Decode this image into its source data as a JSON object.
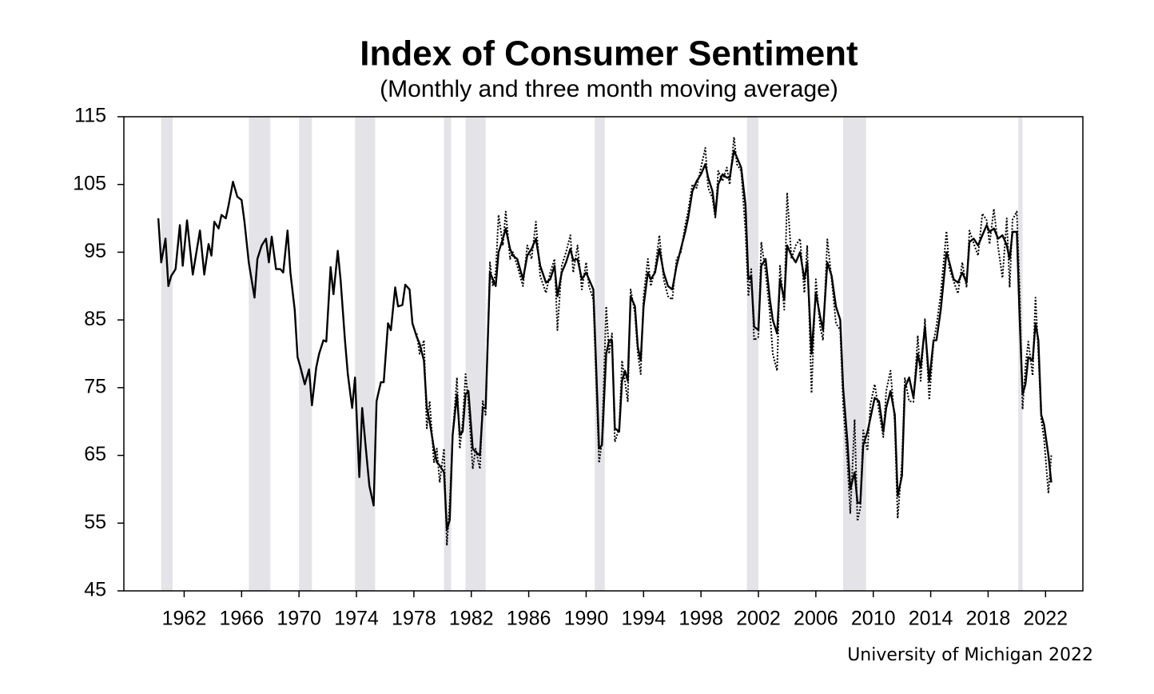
{
  "chart_data": {
    "type": "line",
    "title": "Index of Consumer Sentiment",
    "subtitle": "(Monthly and three month moving average)",
    "source": "University of Michigan 2022",
    "xlim": [
      1957.8,
      2024.6
    ],
    "xticks": [
      1962,
      1966,
      1970,
      1974,
      1978,
      1982,
      1986,
      1990,
      1994,
      1998,
      2002,
      2006,
      2010,
      2014,
      2018,
      2022
    ],
    "ylim": [
      45,
      115
    ],
    "yticks": [
      45,
      55,
      65,
      75,
      85,
      95,
      105,
      115
    ],
    "grid": false,
    "shaded_color": "#e4e4e8",
    "shaded": [
      [
        1960.4,
        1961.2
      ],
      [
        1966.5,
        1968.0
      ],
      [
        1970.0,
        1970.9
      ],
      [
        1973.9,
        1975.3
      ],
      [
        1980.1,
        1980.6
      ],
      [
        1981.6,
        1983.0
      ],
      [
        1990.6,
        1991.3
      ],
      [
        2001.2,
        2002.0
      ],
      [
        2007.9,
        2009.5
      ],
      [
        2020.1,
        2020.4
      ]
    ],
    "series": [
      {
        "color": "#000000",
        "style": "solid",
        "x": [
          1960.2,
          1960.4,
          1960.7,
          1960.9,
          1961.1,
          1961.4,
          1961.7,
          1961.9,
          1962.2,
          1962.6,
          1963.1,
          1963.4,
          1963.7,
          1963.9,
          1964.1,
          1964.4,
          1964.6,
          1964.9,
          1965.1,
          1965.4,
          1965.7,
          1966.0,
          1966.2,
          1966.5,
          1966.9,
          1967.1,
          1967.4,
          1967.7,
          1967.9,
          1968.1,
          1968.4,
          1968.7,
          1968.9,
          1969.2,
          1969.4,
          1969.7,
          1969.9,
          1970.1,
          1970.4,
          1970.7,
          1970.9,
          1971.2,
          1971.4,
          1971.7,
          1971.9,
          1972.2,
          1972.4,
          1972.7,
          1972.9,
          1973.2,
          1973.4,
          1973.7,
          1973.9,
          1974.2,
          1974.4,
          1974.7,
          1974.9,
          1975.2,
          1975.4,
          1975.7,
          1975.9,
          1976.2,
          1976.4,
          1976.7,
          1976.9,
          1977.2,
          1977.4,
          1977.7,
          1977.9,
          1978.2,
          1978.4,
          1978.7,
          1978.9,
          1979.1,
          1979.4,
          1979.6,
          1979.8,
          1980.1,
          1980.3,
          1980.5,
          1980.7,
          1981.0,
          1981.2,
          1981.4,
          1981.6,
          1981.8,
          1982.1,
          1982.3,
          1982.6,
          1982.8,
          1983.0,
          1983.3,
          1983.5,
          1983.7,
          1983.9,
          1984.2,
          1984.4,
          1984.7,
          1984.9,
          1985.2,
          1985.6,
          1985.9,
          1986.2,
          1986.5,
          1986.8,
          1987.2,
          1987.5,
          1987.8,
          1988.0,
          1988.3,
          1988.6,
          1988.9,
          1989.1,
          1989.4,
          1989.7,
          1990.0,
          1990.2,
          1990.5,
          1990.7,
          1990.9,
          1991.1,
          1991.4,
          1991.6,
          1991.8,
          1992.0,
          1992.3,
          1992.5,
          1992.7,
          1992.9,
          1993.1,
          1993.4,
          1993.6,
          1993.8,
          1994.0,
          1994.3,
          1994.5,
          1994.8,
          1995.1,
          1995.4,
          1995.7,
          1996.0,
          1996.3,
          1996.6,
          1996.9,
          1997.1,
          1997.4,
          1997.7,
          1998.0,
          1998.3,
          1998.5,
          1998.8,
          1999.0,
          1999.2,
          1999.5,
          1999.8,
          2000.0,
          2000.3,
          2000.5,
          2000.8,
          2001.1,
          2001.3,
          2001.5,
          2001.7,
          2002.0,
          2002.2,
          2002.5,
          2002.8,
          2003.0,
          2003.3,
          2003.5,
          2003.8,
          2004.0,
          2004.3,
          2004.6,
          2004.9,
          2005.2,
          2005.4,
          2005.7,
          2006.0,
          2006.3,
          2006.5,
          2006.8,
          2007.1,
          2007.4,
          2007.7,
          2007.9,
          2008.2,
          2008.4,
          2008.7,
          2008.9,
          2009.1,
          2009.3,
          2009.6,
          2009.8,
          2010.1,
          2010.4,
          2010.7,
          2010.9,
          2011.2,
          2011.5,
          2011.7,
          2012.0,
          2012.2,
          2012.5,
          2012.8,
          2013.1,
          2013.3,
          2013.6,
          2013.9,
          2014.2,
          2014.4,
          2014.7,
          2015.1,
          2015.3,
          2015.6,
          2015.9,
          2016.2,
          2016.5,
          2016.7,
          2017.0,
          2017.3,
          2017.6,
          2017.9,
          2018.1,
          2018.4,
          2018.7,
          2019.0,
          2019.3,
          2019.5,
          2019.7,
          2020.0,
          2020.2,
          2020.4,
          2020.6,
          2020.8,
          2021.1,
          2021.3,
          2021.5,
          2021.7,
          2021.9,
          2022.2,
          2022.4
        ],
        "values": [
          100,
          93.5,
          97,
          90,
          91.5,
          92.5,
          99,
          93,
          99.7,
          91.7,
          98.2,
          91.7,
          96.2,
          94.5,
          99.5,
          98.5,
          100.5,
          100,
          102,
          105.4,
          103.2,
          102.7,
          99.5,
          93.5,
          88.3,
          94,
          96,
          97,
          93.5,
          97.3,
          92.5,
          92.5,
          92,
          98.2,
          92,
          86.5,
          79.5,
          78,
          75.5,
          77.7,
          72.4,
          78,
          80,
          82,
          81.8,
          92.8,
          88.8,
          95.2,
          90.8,
          82,
          77,
          72,
          76.5,
          61.8,
          72,
          65,
          60.5,
          57.6,
          73,
          75.8,
          75.8,
          84.5,
          83.5,
          89.8,
          87,
          87.2,
          90.2,
          89.5,
          84.5,
          82.5,
          81.5,
          79,
          72,
          70,
          66,
          64,
          63.5,
          62.5,
          54,
          55.5,
          68,
          74,
          68,
          68.5,
          74,
          74.5,
          66,
          65.5,
          65,
          72,
          72,
          92,
          91,
          90,
          95,
          97,
          98.5,
          95.5,
          94.5,
          94,
          91,
          94.5,
          95.5,
          97,
          93,
          90.5,
          91,
          93,
          88.5,
          92,
          93.5,
          95.5,
          93.8,
          94,
          91,
          92,
          91,
          89.5,
          78,
          66,
          66.5,
          80,
          82,
          82,
          69,
          68.5,
          76,
          77.5,
          76,
          88.5,
          87,
          81,
          79,
          87,
          92,
          91,
          92,
          95.5,
          92,
          90,
          89.5,
          93,
          95.5,
          98,
          100,
          104,
          105.5,
          106.5,
          108,
          106,
          104,
          100.5,
          105,
          106.5,
          106,
          106,
          110,
          109,
          107.5,
          102,
          91,
          91.5,
          84,
          83.5,
          93,
          94,
          88,
          85,
          83,
          91,
          88,
          96,
          94.5,
          93.5,
          95,
          91,
          93.5,
          80,
          89,
          85.5,
          83.5,
          93.5,
          91.5,
          87,
          85,
          75,
          67,
          60,
          62.5,
          58,
          58,
          66.5,
          68.5,
          70.5,
          73.5,
          73,
          68.5,
          72,
          74.5,
          71,
          59,
          62,
          75,
          76.5,
          73.5,
          80,
          78,
          84,
          76,
          82,
          82,
          86.5,
          95,
          93.5,
          91,
          90.5,
          92,
          90.5,
          96.5,
          97,
          96,
          97.5,
          99,
          98,
          98.5,
          97,
          97.5,
          96,
          94,
          98,
          98,
          85,
          74,
          75.5,
          79.5,
          79,
          84.5,
          82,
          71,
          69.5,
          65,
          61
        ]
      },
      {
        "color": "#000000",
        "style": "dotted",
        "x": [
          1978.2,
          1978.4,
          1978.7,
          1978.9,
          1979.1,
          1979.4,
          1979.6,
          1979.8,
          1980.1,
          1980.3,
          1980.5,
          1980.7,
          1981.0,
          1981.2,
          1981.4,
          1981.6,
          1981.8,
          1982.1,
          1982.3,
          1982.6,
          1982.8,
          1983.0,
          1983.3,
          1983.5,
          1983.7,
          1983.9,
          1984.2,
          1984.4,
          1984.7,
          1984.9,
          1985.2,
          1985.6,
          1985.9,
          1986.2,
          1986.5,
          1986.8,
          1987.2,
          1987.5,
          1987.8,
          1988.0,
          1988.3,
          1988.6,
          1988.9,
          1989.1,
          1989.4,
          1989.7,
          1990.0,
          1990.2,
          1990.5,
          1990.7,
          1990.9,
          1991.1,
          1991.4,
          1991.6,
          1991.8,
          1992.0,
          1992.3,
          1992.5,
          1992.7,
          1992.9,
          1993.1,
          1993.4,
          1993.6,
          1993.8,
          1994.0,
          1994.3,
          1994.5,
          1994.8,
          1995.1,
          1995.4,
          1995.7,
          1996.0,
          1996.3,
          1996.6,
          1996.9,
          1997.1,
          1997.4,
          1997.7,
          1998.0,
          1998.3,
          1998.5,
          1998.8,
          1999.0,
          1999.2,
          1999.5,
          1999.8,
          2000.0,
          2000.3,
          2000.5,
          2000.8,
          2001.1,
          2001.3,
          2001.5,
          2001.7,
          2002.0,
          2002.2,
          2002.5,
          2002.8,
          2003.0,
          2003.3,
          2003.5,
          2003.8,
          2004.0,
          2004.3,
          2004.6,
          2004.9,
          2005.2,
          2005.4,
          2005.7,
          2006.0,
          2006.3,
          2006.5,
          2006.8,
          2007.1,
          2007.4,
          2007.7,
          2007.9,
          2008.2,
          2008.4,
          2008.7,
          2008.9,
          2009.1,
          2009.3,
          2009.6,
          2009.8,
          2010.1,
          2010.4,
          2010.7,
          2010.9,
          2011.2,
          2011.5,
          2011.7,
          2012.0,
          2012.2,
          2012.5,
          2012.8,
          2013.1,
          2013.3,
          2013.6,
          2013.9,
          2014.2,
          2014.4,
          2014.7,
          2015.1,
          2015.3,
          2015.6,
          2015.9,
          2016.2,
          2016.5,
          2016.7,
          2017.0,
          2017.3,
          2017.6,
          2017.9,
          2018.1,
          2018.4,
          2018.7,
          2019.0,
          2019.3,
          2019.5,
          2019.7,
          2020.0,
          2020.2,
          2020.4,
          2020.6,
          2020.8,
          2021.1,
          2021.3,
          2021.5,
          2021.7,
          2021.9,
          2022.2,
          2022.4
        ],
        "values": [
          83,
          80,
          82,
          69,
          73,
          64,
          66,
          61,
          66,
          51.7,
          58,
          68,
          76.5,
          66,
          70,
          77,
          73,
          63,
          66,
          63,
          73,
          71,
          93.5,
          90,
          92,
          100.5,
          96,
          101,
          94,
          95,
          93,
          90,
          96,
          94,
          99.5,
          91.5,
          89,
          92,
          94,
          83.5,
          93,
          95,
          97.5,
          92,
          96,
          89.5,
          93.5,
          90,
          88,
          76,
          63.9,
          67,
          87,
          80,
          83,
          67,
          69,
          79,
          76,
          73,
          89.5,
          86,
          80,
          77,
          88.5,
          94,
          90,
          92.5,
          97.5,
          91,
          88.5,
          88,
          94,
          95,
          99,
          101,
          105,
          104.5,
          107.5,
          110.4,
          104.5,
          103,
          100,
          107,
          105.5,
          107.5,
          105,
          112,
          108,
          107,
          98,
          88.5,
          92.5,
          82,
          82.5,
          96.5,
          92,
          86,
          80,
          77.5,
          93,
          86.5,
          103.8,
          94,
          96,
          97,
          89,
          96,
          74.2,
          91,
          84,
          82,
          96.9,
          91,
          84.5,
          83.5,
          72.5,
          64,
          56.4,
          70.3,
          55.3,
          57.3,
          68.7,
          65.7,
          72.5,
          75.5,
          71.5,
          67.7,
          74.5,
          77.5,
          69.8,
          55.7,
          64,
          76.4,
          73,
          72.9,
          82.7,
          76,
          85.1,
          73.2,
          81.8,
          84.1,
          88.8,
          98.1,
          92.6,
          90.7,
          88.9,
          93.5,
          89.8,
          98.2,
          96.3,
          94.5,
          100.7,
          99.7,
          96.2,
          101.4,
          95.7,
          91.2,
          100,
          89.8,
          99.8,
          101,
          89.1,
          71.8,
          78.1,
          81.8,
          76.8,
          88.3,
          80.2,
          70.3,
          67.4,
          59.4,
          65
        ]
      }
    ]
  }
}
